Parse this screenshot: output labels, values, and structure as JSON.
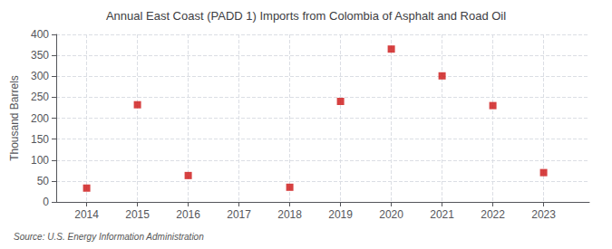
{
  "chart_data": {
    "type": "scatter",
    "title": "Annual East Coast (PADD 1) Imports from Colombia of Asphalt and Road Oil",
    "ylabel": "Thousand Barrels",
    "source": "Source: U.S. Energy Information Administration",
    "x": [
      2014,
      2015,
      2016,
      2017,
      2018,
      2019,
      2020,
      2021,
      2022,
      2023
    ],
    "values": [
      33,
      232,
      63,
      null,
      35,
      240,
      365,
      301,
      230,
      70
    ],
    "color": "#cc1111",
    "marker": "square",
    "xlim": [
      2013.4,
      2023.9
    ],
    "xticks": [
      2014,
      2015,
      2016,
      2017,
      2018,
      2019,
      2020,
      2021,
      2022,
      2023
    ],
    "ylim": [
      0,
      400
    ],
    "yticks": [
      0,
      50,
      100,
      150,
      200,
      250,
      300,
      350,
      400
    ],
    "grid": true
  }
}
